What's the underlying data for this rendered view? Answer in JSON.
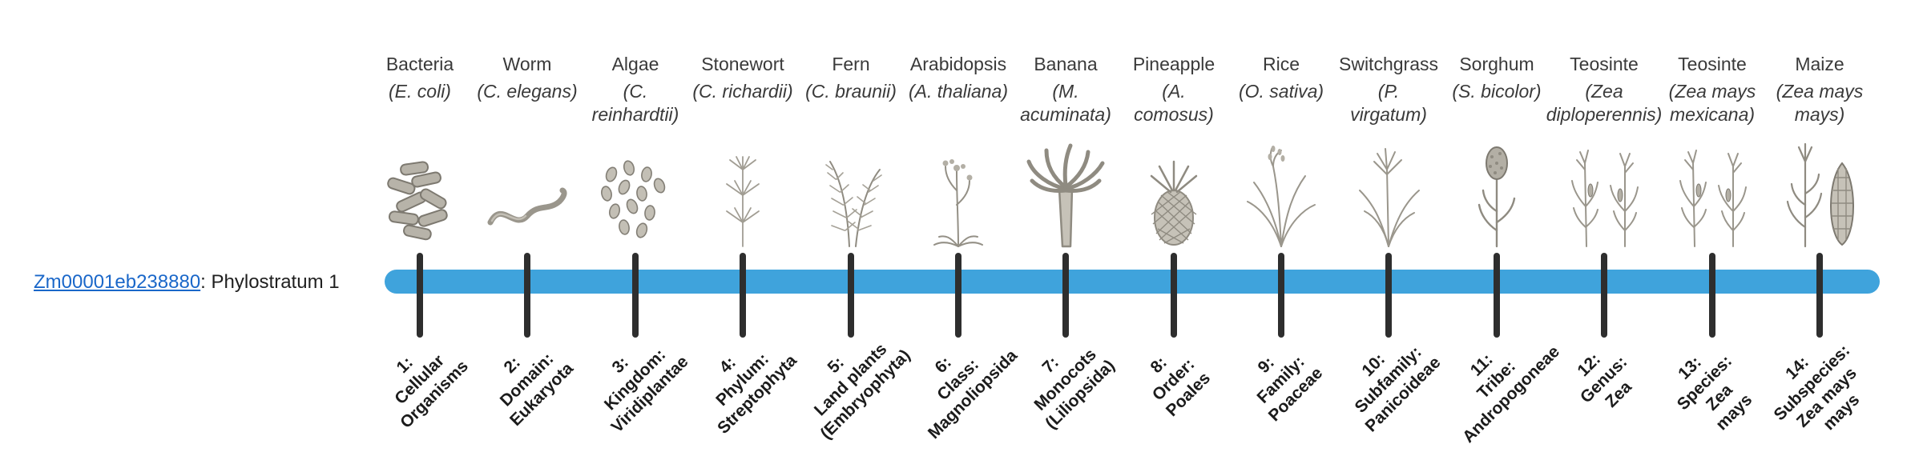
{
  "gene": {
    "id": "Zm00001eb238880",
    "suffix": ": Phylostratum 1"
  },
  "colors": {
    "bar": "#3FA3DC",
    "tick": "#2E2E2E",
    "link": "#1A67C9"
  },
  "strata": [
    {
      "organism": "Bacteria",
      "scientific": "(E. coli)",
      "icon": "bacteria-icon",
      "label": "1:\nCellular\nOrganisms"
    },
    {
      "organism": "Worm",
      "scientific": "(C. elegans)",
      "icon": "worm-icon",
      "label": "2:\nDomain:\nEukaryota"
    },
    {
      "organism": "Algae",
      "scientific": "(C.\nreinhardtii)",
      "icon": "algae-icon",
      "label": "3:\nKingdom:\nViridiplantae"
    },
    {
      "organism": "Stonewort",
      "scientific": "(C. richardii)",
      "icon": "stonewort-icon",
      "label": "4:\nPhylum:\nStreptophyta"
    },
    {
      "organism": "Fern",
      "scientific": "(C. braunii)",
      "icon": "fern-icon",
      "label": "5:\nLand plants\n(Embryophyta)"
    },
    {
      "organism": "Arabidopsis",
      "scientific": "(A. thaliana)",
      "icon": "arabidopsis-icon",
      "label": "6:\nClass:\nMagnoliopsida"
    },
    {
      "organism": "Banana",
      "scientific": "(M.\nacuminata)",
      "icon": "banana-icon",
      "label": "7:\nMonocots\n(Liliopsida)"
    },
    {
      "organism": "Pineapple",
      "scientific": "(A.\ncomosus)",
      "icon": "pineapple-icon",
      "label": "8:\nOrder:\nPoales"
    },
    {
      "organism": "Rice",
      "scientific": "(O. sativa)",
      "icon": "rice-icon",
      "label": "9:\nFamily:\nPoaceae"
    },
    {
      "organism": "Switchgrass",
      "scientific": "(P.\nvirgatum)",
      "icon": "switchgrass-icon",
      "label": "10:\nSubfamily:\nPanicoideae"
    },
    {
      "organism": "Sorghum",
      "scientific": "(S. bicolor)",
      "icon": "sorghum-icon",
      "label": "11:\nTribe:\nAndropogoneae"
    },
    {
      "organism": "Teosinte",
      "scientific": "(Zea\ndiploperennis)",
      "icon": "teosinte-icon",
      "label": "12:\nGenus:\nZea"
    },
    {
      "organism": "Teosinte",
      "scientific": "(Zea mays\nmexicana)",
      "icon": "teosinte-icon",
      "label": "13:\nSpecies:\nZea\nmays"
    },
    {
      "organism": "Maize",
      "scientific": "(Zea mays\nmays)",
      "icon": "maize-icon",
      "label": "14:\nSubspecies:\nZea mays\nmays"
    }
  ]
}
